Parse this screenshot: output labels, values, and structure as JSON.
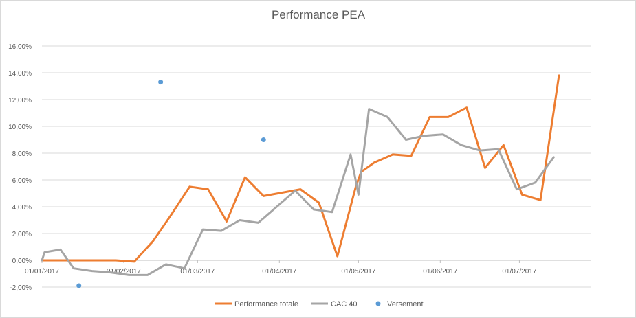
{
  "chart_data": {
    "type": "line",
    "title": "Performance PEA",
    "xlabel": "",
    "ylabel": "",
    "x_range": [
      "2017-01-01",
      "2017-07-28"
    ],
    "x_ticks": [
      "01/01/2017",
      "01/02/2017",
      "01/03/2017",
      "01/04/2017",
      "01/05/2017",
      "01/06/2017",
      "01/07/2017"
    ],
    "x_tick_dates": [
      "2017-01-01",
      "2017-02-01",
      "2017-03-01",
      "2017-04-01",
      "2017-05-01",
      "2017-06-01",
      "2017-07-01"
    ],
    "ylim": [
      -2,
      16
    ],
    "y_ticks": [
      "-2,00%",
      "0,00%",
      "2,00%",
      "4,00%",
      "6,00%",
      "8,00%",
      "10,00%",
      "12,00%",
      "14,00%",
      "16,00%"
    ],
    "y_tick_values": [
      -2,
      0,
      2,
      4,
      6,
      8,
      10,
      12,
      14,
      16
    ],
    "grid": true,
    "legend_position": "bottom",
    "series": [
      {
        "name": "Performance totale",
        "kind": "line",
        "color": "#ED7D31",
        "points": [
          [
            "2017-01-01",
            0.0
          ],
          [
            "2017-01-15",
            0.0
          ],
          [
            "2017-01-29",
            0.0
          ],
          [
            "2017-02-05",
            -0.1
          ],
          [
            "2017-02-12",
            1.4
          ],
          [
            "2017-02-19",
            3.4
          ],
          [
            "2017-02-26",
            5.5
          ],
          [
            "2017-03-05",
            5.3
          ],
          [
            "2017-03-12",
            2.9
          ],
          [
            "2017-03-19",
            6.2
          ],
          [
            "2017-03-26",
            4.8
          ],
          [
            "2017-04-09",
            5.3
          ],
          [
            "2017-04-16",
            4.3
          ],
          [
            "2017-04-23",
            0.3
          ],
          [
            "2017-04-30",
            5.5
          ],
          [
            "2017-05-02",
            6.6
          ],
          [
            "2017-05-07",
            7.3
          ],
          [
            "2017-05-14",
            7.9
          ],
          [
            "2017-05-21",
            7.8
          ],
          [
            "2017-05-28",
            10.7
          ],
          [
            "2017-06-04",
            10.7
          ],
          [
            "2017-06-11",
            11.4
          ],
          [
            "2017-06-18",
            6.9
          ],
          [
            "2017-06-25",
            8.6
          ],
          [
            "2017-07-02",
            4.9
          ],
          [
            "2017-07-09",
            4.5
          ],
          [
            "2017-07-16",
            13.8
          ]
        ]
      },
      {
        "name": "CAC 40",
        "kind": "line",
        "color": "#A5A5A5",
        "points": [
          [
            "2017-01-01",
            0.0
          ],
          [
            "2017-01-02",
            0.6
          ],
          [
            "2017-01-08",
            0.8
          ],
          [
            "2017-01-13",
            -0.6
          ],
          [
            "2017-01-20",
            -0.8
          ],
          [
            "2017-01-27",
            -0.9
          ],
          [
            "2017-02-03",
            -1.1
          ],
          [
            "2017-02-10",
            -1.1
          ],
          [
            "2017-02-17",
            -0.3
          ],
          [
            "2017-02-24",
            -0.6
          ],
          [
            "2017-03-03",
            2.3
          ],
          [
            "2017-03-10",
            2.2
          ],
          [
            "2017-03-17",
            3.0
          ],
          [
            "2017-03-24",
            2.8
          ],
          [
            "2017-04-07",
            5.2
          ],
          [
            "2017-04-14",
            3.8
          ],
          [
            "2017-04-21",
            3.6
          ],
          [
            "2017-04-28",
            7.9
          ],
          [
            "2017-05-01",
            4.9
          ],
          [
            "2017-05-05",
            11.3
          ],
          [
            "2017-05-12",
            10.7
          ],
          [
            "2017-05-19",
            9.0
          ],
          [
            "2017-05-26",
            9.3
          ],
          [
            "2017-06-02",
            9.4
          ],
          [
            "2017-06-09",
            8.6
          ],
          [
            "2017-06-16",
            8.2
          ],
          [
            "2017-06-23",
            8.3
          ],
          [
            "2017-06-30",
            5.3
          ],
          [
            "2017-07-07",
            5.8
          ],
          [
            "2017-07-14",
            7.7
          ]
        ]
      },
      {
        "name": "Versement",
        "kind": "scatter",
        "color": "#5B9BD5",
        "points": [
          [
            "2017-01-15",
            -1.9
          ],
          [
            "2017-02-15",
            13.3
          ],
          [
            "2017-03-26",
            9.0
          ]
        ]
      }
    ]
  }
}
